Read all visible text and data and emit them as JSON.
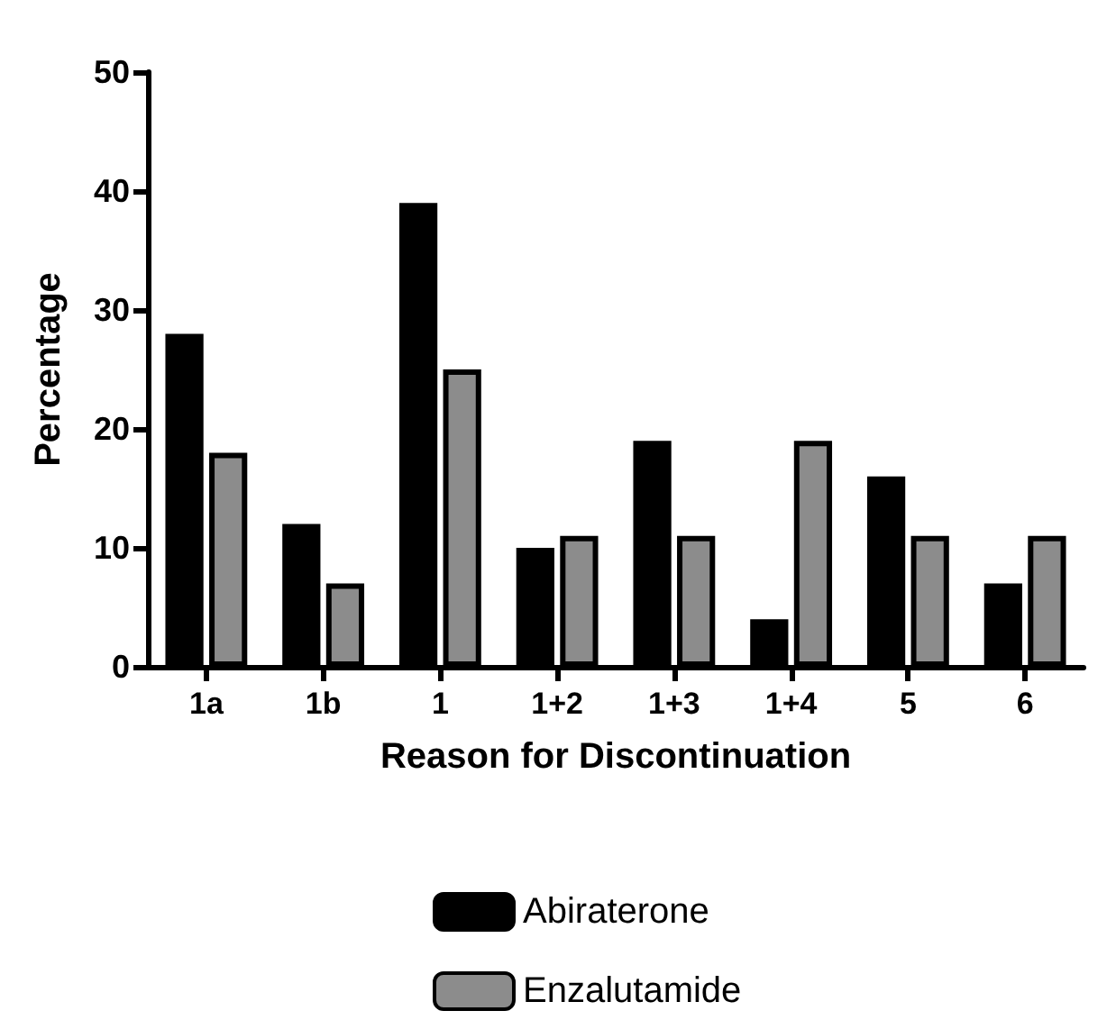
{
  "chart_data": {
    "type": "bar",
    "xlabel": "Reason for Discontinuation",
    "ylabel": "Percentage",
    "categories": [
      "1a",
      "1b",
      "1",
      "1+2",
      "1+3",
      "1+4",
      "5",
      "6"
    ],
    "series": [
      {
        "name": "Abiraterone",
        "color": "#000000",
        "values": [
          28,
          12,
          39,
          10,
          19,
          4,
          16,
          7
        ]
      },
      {
        "name": "Enzalutamide",
        "color": "#8c8c8c",
        "values": [
          18,
          7,
          25,
          11,
          11,
          19,
          11,
          11
        ]
      }
    ],
    "ylim": [
      0,
      50
    ],
    "yticks": [
      0,
      10,
      20,
      30,
      40,
      50
    ],
    "grid": false,
    "legend": "bottom"
  }
}
